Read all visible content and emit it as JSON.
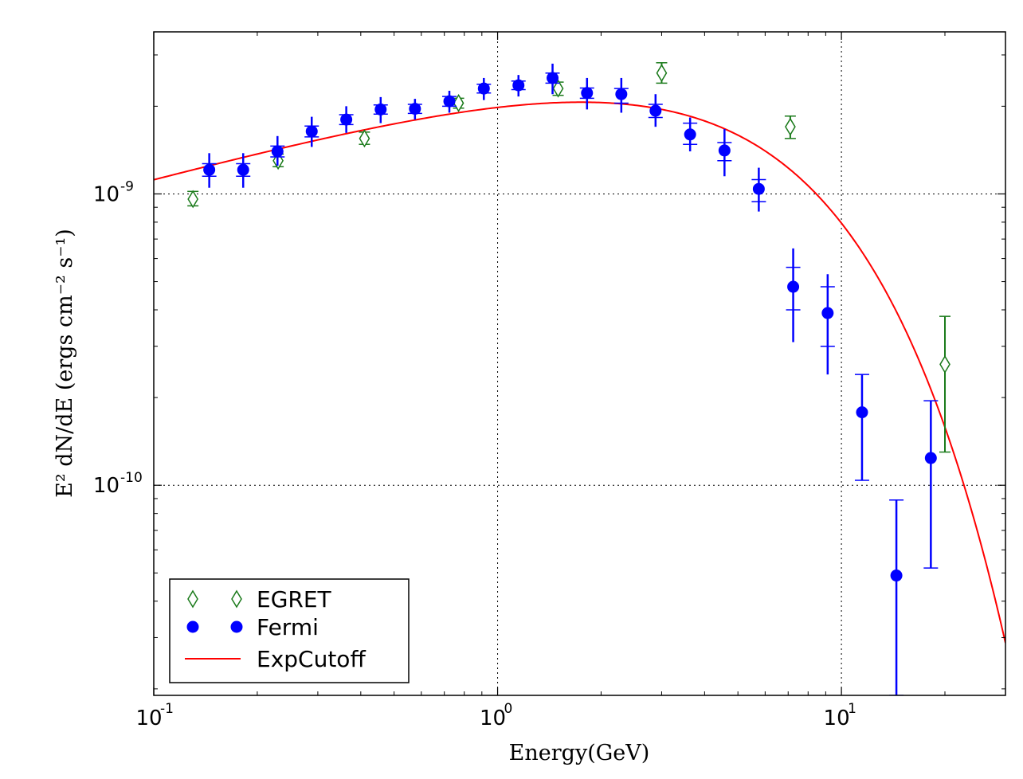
{
  "chart_data": {
    "type": "scatter",
    "xscale": "log",
    "yscale": "log",
    "xlabel": "Energy(GeV)",
    "ylabel": "E² dN/dE (ergs cm⁻² s⁻¹)",
    "xlim": [
      0.1,
      30
    ],
    "ylim": [
      1.9e-11,
      3.6e-09
    ],
    "grid": true,
    "legend_position": "bottom-left",
    "x_ticks": [
      {
        "value": 0.1,
        "base": "10",
        "exp": "-1"
      },
      {
        "value": 1,
        "base": "10",
        "exp": "0"
      },
      {
        "value": 10,
        "base": "10",
        "exp": "1"
      }
    ],
    "y_ticks": [
      {
        "value": 1e-09,
        "base": "10",
        "exp": "-9"
      },
      {
        "value": 1e-10,
        "base": "10",
        "exp": "-10"
      }
    ],
    "series": [
      {
        "name": "EGRET",
        "marker": "diamond-open",
        "color": "#1a7a1a",
        "points": [
          {
            "x": 0.13,
            "y": 9.6e-10,
            "ylo": 9.1e-10,
            "yhi": 1.02e-09
          },
          {
            "x": 0.23,
            "y": 1.3e-09,
            "ylo": 1.24e-09,
            "yhi": 1.37e-09
          },
          {
            "x": 0.41,
            "y": 1.55e-09,
            "ylo": 1.48e-09,
            "yhi": 1.63e-09
          },
          {
            "x": 0.77,
            "y": 2.05e-09,
            "ylo": 1.97e-09,
            "yhi": 2.13e-09
          },
          {
            "x": 1.5,
            "y": 2.3e-09,
            "ylo": 2.18e-09,
            "yhi": 2.42e-09
          },
          {
            "x": 3.0,
            "y": 2.6e-09,
            "ylo": 2.4e-09,
            "yhi": 2.82e-09
          },
          {
            "x": 7.1,
            "y": 1.7e-09,
            "ylo": 1.55e-09,
            "yhi": 1.85e-09
          },
          {
            "x": 20.0,
            "y": 2.6e-10,
            "ylo": 1.3e-10,
            "yhi": 3.8e-10
          }
        ]
      },
      {
        "name": "Fermi",
        "marker": "circle-filled",
        "color": "#0000ff",
        "points": [
          {
            "x": 0.145,
            "y": 1.21e-09,
            "ylo": 1.05e-09,
            "yhi": 1.38e-09,
            "sys_lo": 1.15e-09,
            "sys_hi": 1.27e-09
          },
          {
            "x": 0.182,
            "y": 1.21e-09,
            "ylo": 1.05e-09,
            "yhi": 1.38e-09,
            "sys_lo": 1.15e-09,
            "sys_hi": 1.27e-09
          },
          {
            "x": 0.229,
            "y": 1.4e-09,
            "ylo": 1.25e-09,
            "yhi": 1.58e-09,
            "sys_lo": 1.34e-09,
            "sys_hi": 1.46e-09
          },
          {
            "x": 0.288,
            "y": 1.64e-09,
            "ylo": 1.45e-09,
            "yhi": 1.84e-09,
            "sys_lo": 1.57e-09,
            "sys_hi": 1.71e-09
          },
          {
            "x": 0.363,
            "y": 1.8e-09,
            "ylo": 1.62e-09,
            "yhi": 2e-09,
            "sys_lo": 1.73e-09,
            "sys_hi": 1.87e-09
          },
          {
            "x": 0.457,
            "y": 1.95e-09,
            "ylo": 1.75e-09,
            "yhi": 2.15e-09,
            "sys_lo": 1.88e-09,
            "sys_hi": 2.02e-09
          },
          {
            "x": 0.575,
            "y": 1.96e-09,
            "ylo": 1.8e-09,
            "yhi": 2.12e-09,
            "sys_lo": 1.89e-09,
            "sys_hi": 2.03e-09
          },
          {
            "x": 0.724,
            "y": 2.08e-09,
            "ylo": 1.9e-09,
            "yhi": 2.26e-09,
            "sys_lo": 2e-09,
            "sys_hi": 2.16e-09
          },
          {
            "x": 0.912,
            "y": 2.3e-09,
            "ylo": 2.1e-09,
            "yhi": 2.5e-09,
            "sys_lo": 2.22e-09,
            "sys_hi": 2.38e-09
          },
          {
            "x": 1.15,
            "y": 2.36e-09,
            "ylo": 2.16e-09,
            "yhi": 2.56e-09,
            "sys_lo": 2.28e-09,
            "sys_hi": 2.44e-09
          },
          {
            "x": 1.445,
            "y": 2.5e-09,
            "ylo": 2.2e-09,
            "yhi": 2.8e-09,
            "sys_lo": 2.4e-09,
            "sys_hi": 2.6e-09
          },
          {
            "x": 1.82,
            "y": 2.22e-09,
            "ylo": 1.95e-09,
            "yhi": 2.5e-09,
            "sys_lo": 2.13e-09,
            "sys_hi": 2.31e-09
          },
          {
            "x": 2.29,
            "y": 2.2e-09,
            "ylo": 1.9e-09,
            "yhi": 2.5e-09,
            "sys_lo": 2.05e-09,
            "sys_hi": 2.3e-09
          },
          {
            "x": 2.88,
            "y": 1.93e-09,
            "ylo": 1.7e-09,
            "yhi": 2.2e-09,
            "sys_lo": 1.83e-09,
            "sys_hi": 2.03e-09
          },
          {
            "x": 3.63,
            "y": 1.6e-09,
            "ylo": 1.4e-09,
            "yhi": 1.83e-09,
            "sys_lo": 1.48e-09,
            "sys_hi": 1.75e-09
          },
          {
            "x": 4.57,
            "y": 1.41e-09,
            "ylo": 1.15e-09,
            "yhi": 1.67e-09,
            "sys_lo": 1.3e-09,
            "sys_hi": 1.5e-09
          },
          {
            "x": 5.75,
            "y": 1.04e-09,
            "ylo": 8.7e-10,
            "yhi": 1.23e-09,
            "sys_lo": 9.4e-10,
            "sys_hi": 1.12e-09
          },
          {
            "x": 7.24,
            "y": 4.8e-10,
            "ylo": 3.1e-10,
            "yhi": 6.5e-10,
            "sys_lo": 4e-10,
            "sys_hi": 5.6e-10
          },
          {
            "x": 9.12,
            "y": 3.9e-10,
            "ylo": 2.4e-10,
            "yhi": 5.3e-10,
            "sys_lo": 3e-10,
            "sys_hi": 4.8e-10
          },
          {
            "x": 11.48,
            "y": 1.78e-10,
            "ylo": 1.04e-10,
            "yhi": 2.4e-10,
            "sys_lo": 1.04e-10,
            "sys_hi": 2.4e-10
          },
          {
            "x": 14.45,
            "y": 4.9e-11,
            "ylo": 1.9e-11,
            "yhi": 8.9e-11,
            "sys_lo": 1.9e-11,
            "sys_hi": 8.9e-11
          },
          {
            "x": 18.2,
            "y": 1.24e-10,
            "ylo": 5.2e-11,
            "yhi": 1.95e-10,
            "sys_lo": 5.2e-11,
            "sys_hi": 1.95e-10
          }
        ]
      },
      {
        "name": "ExpCutoff",
        "line": true,
        "color": "#ff0000",
        "model": {
          "A": 2.38e-09,
          "index_term": 0.32,
          "cutoff_gev": 5.45,
          "x0": 1.0
        }
      }
    ]
  }
}
